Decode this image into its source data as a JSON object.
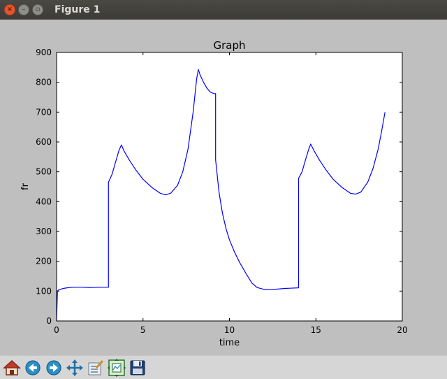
{
  "window": {
    "title": "Figure 1"
  },
  "toolbar": {
    "tools": [
      "home-icon",
      "back-icon",
      "forward-icon",
      "pan-icon",
      "configure-subplots-icon",
      "zoom-icon",
      "save-icon"
    ]
  },
  "colors": {
    "line": "#0000ff",
    "figure_bg": "#bfbfbf",
    "axes_bg": "#ffffff"
  },
  "chart_data": {
    "type": "line",
    "title": "Graph",
    "xlabel": "time",
    "ylabel": "fr",
    "xlim": [
      0,
      20
    ],
    "ylim": [
      0,
      900
    ],
    "xticks": [
      0,
      5,
      10,
      15,
      20
    ],
    "yticks": [
      0,
      100,
      200,
      300,
      400,
      500,
      600,
      700,
      800,
      900
    ],
    "grid": false,
    "series": [
      {
        "x": [
          0.0,
          0.05,
          0.1,
          0.2,
          0.4,
          0.6,
          0.8,
          1.0,
          1.5,
          2.0,
          2.5,
          3.0,
          3.0,
          3.2,
          3.4,
          3.6,
          3.75,
          3.9,
          4.2,
          4.6,
          5.0,
          5.5,
          6.0,
          6.3,
          6.6,
          7.0,
          7.3,
          7.6,
          7.9,
          8.1,
          8.2,
          8.3,
          8.5,
          8.7,
          8.9,
          9.1,
          9.2,
          9.2,
          9.4,
          9.6,
          9.8,
          10.0,
          10.3,
          10.6,
          11.0,
          11.3,
          11.6,
          12.0,
          12.4,
          12.8,
          13.2,
          13.6,
          14.0,
          14.0,
          14.2,
          14.4,
          14.6,
          14.7,
          14.9,
          15.2,
          15.6,
          16.0,
          16.5,
          17.0,
          17.3,
          17.6,
          18.0,
          18.3,
          18.6,
          18.8,
          19.0
        ],
        "y": [
          0,
          100,
          103,
          106,
          109,
          111,
          112,
          113,
          113,
          112,
          113,
          113,
          465,
          490,
          530,
          570,
          590,
          570,
          540,
          505,
          475,
          448,
          428,
          423,
          428,
          455,
          500,
          575,
          700,
          810,
          843,
          825,
          800,
          780,
          767,
          762,
          762,
          540,
          430,
          360,
          310,
          272,
          230,
          195,
          155,
          127,
          112,
          106,
          105,
          107,
          109,
          110,
          111,
          478,
          500,
          540,
          578,
          593,
          570,
          540,
          505,
          475,
          448,
          428,
          425,
          432,
          465,
          510,
          575,
          635,
          700
        ]
      }
    ]
  }
}
